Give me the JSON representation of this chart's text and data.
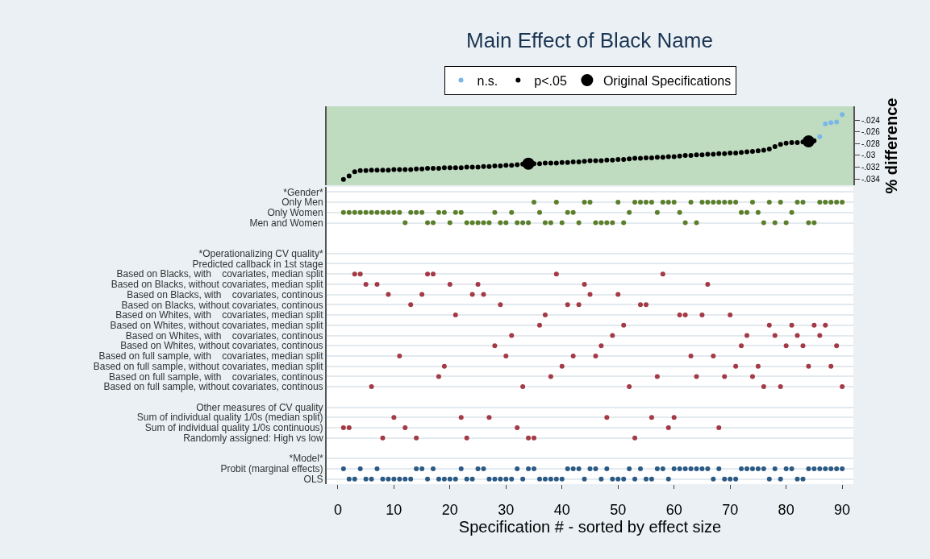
{
  "chart_data": [
    {
      "type": "scatter",
      "title": "Main Effect of Black Name",
      "ylabel": "% difference",
      "legend": "top",
      "marker": "circle",
      "tick_labels": "y",
      "xlim": [
        -2,
        92
      ],
      "xticks": [
        0,
        10,
        20,
        30,
        40,
        50,
        60,
        70,
        80,
        90
      ],
      "ylim": [
        -0.0351,
        -0.0216
      ],
      "yticks": [
        {
          "value": -0.024,
          "label": "-.024"
        },
        {
          "value": -0.026,
          "label": "-.026"
        },
        {
          "value": -0.028,
          "label": "-.028"
        },
        {
          "value": -0.03,
          "label": "-.03"
        },
        {
          "value": -0.032,
          "label": "-.032"
        },
        {
          "value": -0.034,
          "label": "-.034"
        }
      ],
      "series": [
        {
          "name": "n.s.",
          "color": "#7ab6e6",
          "x": [
            86,
            87,
            88,
            89,
            90
          ],
          "values": [
            -0.0268,
            -0.0246,
            -0.0244,
            -0.0243,
            -0.023
          ]
        },
        {
          "name": "p<.05",
          "color": "#000000",
          "x": [
            1,
            2,
            3,
            4,
            5,
            6,
            7,
            8,
            9,
            10,
            11,
            12,
            13,
            14,
            15,
            16,
            17,
            18,
            19,
            20,
            21,
            22,
            23,
            24,
            25,
            26,
            27,
            28,
            29,
            30,
            31,
            32,
            33,
            35,
            36,
            37,
            38,
            39,
            40,
            41,
            42,
            43,
            44,
            45,
            46,
            47,
            48,
            49,
            50,
            51,
            52,
            53,
            54,
            55,
            56,
            57,
            58,
            59,
            60,
            61,
            62,
            63,
            64,
            65,
            66,
            67,
            68,
            69,
            70,
            71,
            72,
            73,
            74,
            75,
            76,
            77,
            78,
            79,
            80,
            81,
            82,
            83,
            85
          ],
          "values": [
            -0.0341,
            -0.0335,
            -0.0328,
            -0.0326,
            -0.0326,
            -0.0325,
            -0.0325,
            -0.0325,
            -0.0325,
            -0.0324,
            -0.0324,
            -0.0324,
            -0.0324,
            -0.0323,
            -0.0323,
            -0.0322,
            -0.0322,
            -0.0322,
            -0.0321,
            -0.0321,
            -0.0321,
            -0.0321,
            -0.032,
            -0.032,
            -0.032,
            -0.0319,
            -0.0319,
            -0.0318,
            -0.0318,
            -0.0317,
            -0.0317,
            -0.0316,
            -0.0315,
            -0.0314,
            -0.0314,
            -0.0313,
            -0.0313,
            -0.0313,
            -0.0312,
            -0.0312,
            -0.0311,
            -0.0311,
            -0.031,
            -0.0309,
            -0.0309,
            -0.0309,
            -0.0308,
            -0.0308,
            -0.0307,
            -0.0307,
            -0.0306,
            -0.0305,
            -0.0305,
            -0.0304,
            -0.0304,
            -0.0303,
            -0.0303,
            -0.0302,
            -0.0302,
            -0.0301,
            -0.03,
            -0.03,
            -0.0299,
            -0.0299,
            -0.0298,
            -0.0298,
            -0.0297,
            -0.0297,
            -0.0296,
            -0.0296,
            -0.0295,
            -0.0294,
            -0.0293,
            -0.0292,
            -0.0291,
            -0.0289,
            -0.0285,
            -0.0281,
            -0.0279,
            -0.0278,
            -0.0278,
            -0.0277,
            -0.0275
          ]
        },
        {
          "name": "Original Specifications",
          "color": "#000000",
          "x": [
            34,
            84
          ],
          "values": [
            -0.0314,
            -0.0276
          ]
        }
      ]
    },
    {
      "type": "scatter",
      "orientation": "horizontal",
      "xlabel": "Specification # - sorted by effect size",
      "marker": "circle",
      "grid": "y",
      "xlim": [
        -2,
        92
      ],
      "xticks": [
        0,
        10,
        20,
        30,
        40,
        50,
        60,
        70,
        80,
        90
      ],
      "categories": [
        "*Gender*",
        "Only Men",
        "Only Women",
        "Men and Women",
        null,
        null,
        "*Operationalizing CV quality*",
        "Predicted callback in 1st stage",
        "Based on Blacks, with    covariates, median split",
        "Based on Blacks, without covariates, median split",
        "Based on Blacks, with    covariates, continous",
        "Based on Blacks, without covariates, continous",
        "Based on Whites, with    covariates, median split",
        "Based on Whites, without covariates, median split",
        "Based on Whites, with    covariates, continous",
        "Based on Whites, without covariates, continous",
        "Based on full sample, with    covariates, median split",
        "Based on full sample, without covariates, median split",
        "Based on full sample, with    covariates, continous",
        "Based on full sample, without covariates, continous",
        null,
        "Other measures of CV quality",
        "Sum of individual quality 1/0s (median split)",
        "Sum of individual quality 1/0s continuous)",
        "Randomly assigned: High vs low",
        null,
        "*Model*",
        "Probit (marginal effects)",
        "OLS"
      ],
      "series": [
        {
          "color": "#5b7f2b",
          "x": [
            "Only Men",
            "Only Men",
            "Only Men",
            "Only Men",
            "Only Men",
            "Only Men",
            "Only Men",
            "Only Men",
            "Only Men",
            "Only Men",
            "Only Men",
            "Only Men",
            "Only Men",
            "Only Men",
            "Only Men",
            "Only Men",
            "Only Men",
            "Only Men",
            "Only Men",
            "Only Men",
            "Only Men",
            "Only Men",
            "Only Men",
            "Only Men",
            "Only Men",
            "Only Men",
            "Only Men",
            "Only Men",
            "Only Men",
            "Only Men",
            "Only Women",
            "Only Women",
            "Only Women",
            "Only Women",
            "Only Women",
            "Only Women",
            "Only Women",
            "Only Women",
            "Only Women",
            "Only Women",
            "Only Women",
            "Only Women",
            "Only Women",
            "Only Women",
            "Only Women",
            "Only Women",
            "Only Women",
            "Only Women",
            "Only Women",
            "Only Women",
            "Only Women",
            "Only Women",
            "Only Women",
            "Only Women",
            "Only Women",
            "Only Women",
            "Only Women",
            "Only Women",
            "Only Women",
            "Only Women",
            "Men and Women",
            "Men and Women",
            "Men and Women",
            "Men and Women",
            "Men and Women",
            "Men and Women",
            "Men and Women",
            "Men and Women",
            "Men and Women",
            "Men and Women",
            "Men and Women",
            "Men and Women",
            "Men and Women",
            "Men and Women",
            "Men and Women",
            "Men and Women",
            "Men and Women",
            "Men and Women",
            "Men and Women",
            "Men and Women",
            "Men and Women",
            "Men and Women",
            "Men and Women",
            "Men and Women",
            "Men and Women",
            "Men and Women",
            "Men and Women",
            "Men and Women",
            "Men and Women",
            "Men and Women"
          ],
          "values": [
            35,
            39,
            44,
            45,
            50,
            53,
            54,
            55,
            56,
            58,
            59,
            60,
            63,
            65,
            66,
            67,
            68,
            69,
            70,
            71,
            74,
            77,
            79,
            82,
            83,
            86,
            87,
            88,
            89,
            90,
            1,
            2,
            3,
            4,
            5,
            6,
            7,
            8,
            9,
            10,
            11,
            13,
            14,
            15,
            18,
            19,
            21,
            22,
            28,
            31,
            36,
            41,
            42,
            52,
            57,
            61,
            72,
            73,
            75,
            81,
            12,
            16,
            17,
            20,
            23,
            24,
            25,
            26,
            27,
            29,
            30,
            32,
            33,
            34,
            37,
            38,
            40,
            43,
            46,
            47,
            48,
            49,
            51,
            62,
            64,
            76,
            78,
            80,
            84,
            85
          ]
        },
        {
          "color": "#a33a45",
          "x": [
            "Based on Blacks, with    covariates, median split",
            "Based on Blacks, with    covariates, median split",
            "Based on Blacks, with    covariates, median split",
            "Based on Blacks, with    covariates, median split",
            "Based on Blacks, with    covariates, median split",
            "Based on Blacks, with    covariates, median split",
            "Based on Blacks, without covariates, median split",
            "Based on Blacks, without covariates, median split",
            "Based on Blacks, without covariates, median split",
            "Based on Blacks, without covariates, median split",
            "Based on Blacks, without covariates, median split",
            "Based on Blacks, without covariates, median split",
            "Based on Blacks, with    covariates, continous",
            "Based on Blacks, with    covariates, continous",
            "Based on Blacks, with    covariates, continous",
            "Based on Blacks, with    covariates, continous",
            "Based on Blacks, with    covariates, continous",
            "Based on Blacks, with    covariates, continous",
            "Based on Blacks, without covariates, continous",
            "Based on Blacks, without covariates, continous",
            "Based on Blacks, without covariates, continous",
            "Based on Blacks, without covariates, continous",
            "Based on Blacks, without covariates, continous",
            "Based on Blacks, without covariates, continous",
            "Based on Whites, with    covariates, median split",
            "Based on Whites, with    covariates, median split",
            "Based on Whites, with    covariates, median split",
            "Based on Whites, with    covariates, median split",
            "Based on Whites, with    covariates, median split",
            "Based on Whites, with    covariates, median split",
            "Based on Whites, without covariates, median split",
            "Based on Whites, without covariates, median split",
            "Based on Whites, without covariates, median split",
            "Based on Whites, without covariates, median split",
            "Based on Whites, without covariates, median split",
            "Based on Whites, without covariates, median split",
            "Based on Whites, with    covariates, continous",
            "Based on Whites, with    covariates, continous",
            "Based on Whites, with    covariates, continous",
            "Based on Whites, with    covariates, continous",
            "Based on Whites, with    covariates, continous",
            "Based on Whites, with    covariates, continous",
            "Based on Whites, without covariates, continous",
            "Based on Whites, without covariates, continous",
            "Based on Whites, without covariates, continous",
            "Based on Whites, without covariates, continous",
            "Based on Whites, without covariates, continous",
            "Based on Whites, without covariates, continous",
            "Based on full sample, with    covariates, median split",
            "Based on full sample, with    covariates, median split",
            "Based on full sample, with    covariates, median split",
            "Based on full sample, with    covariates, median split",
            "Based on full sample, with    covariates, median split",
            "Based on full sample, with    covariates, median split",
            "Based on full sample, without covariates, median split",
            "Based on full sample, without covariates, median split",
            "Based on full sample, without covariates, median split",
            "Based on full sample, without covariates, median split",
            "Based on full sample, without covariates, median split",
            "Based on full sample, without covariates, median split",
            "Based on full sample, with    covariates, continous",
            "Based on full sample, with    covariates, continous",
            "Based on full sample, with    covariates, continous",
            "Based on full sample, with    covariates, continous",
            "Based on full sample, with    covariates, continous",
            "Based on full sample, with    covariates, continous",
            "Based on full sample, without covariates, continous",
            "Based on full sample, without covariates, continous",
            "Based on full sample, without covariates, continous",
            "Based on full sample, without covariates, continous",
            "Based on full sample, without covariates, continous",
            "Based on full sample, without covariates, continous",
            "Sum of individual quality 1/0s (median split)",
            "Sum of individual quality 1/0s (median split)",
            "Sum of individual quality 1/0s (median split)",
            "Sum of individual quality 1/0s (median split)",
            "Sum of individual quality 1/0s (median split)",
            "Sum of individual quality 1/0s (median split)",
            "Sum of individual quality 1/0s continuous)",
            "Sum of individual quality 1/0s continuous)",
            "Sum of individual quality 1/0s continuous)",
            "Sum of individual quality 1/0s continuous)",
            "Sum of individual quality 1/0s continuous)",
            "Sum of individual quality 1/0s continuous)",
            "Randomly assigned: High vs low",
            "Randomly assigned: High vs low",
            "Randomly assigned: High vs low",
            "Randomly assigned: High vs low",
            "Randomly assigned: High vs low",
            "Randomly assigned: High vs low"
          ],
          "values": [
            3,
            4,
            16,
            17,
            39,
            58,
            5,
            7,
            20,
            25,
            44,
            66,
            9,
            15,
            24,
            26,
            45,
            50,
            13,
            29,
            41,
            43,
            54,
            55,
            21,
            37,
            61,
            62,
            65,
            70,
            36,
            51,
            77,
            81,
            85,
            87,
            31,
            49,
            73,
            78,
            82,
            86,
            28,
            47,
            72,
            80,
            83,
            89,
            11,
            30,
            42,
            46,
            63,
            67,
            19,
            40,
            71,
            75,
            84,
            88,
            18,
            38,
            57,
            64,
            69,
            74,
            6,
            33,
            52,
            76,
            79,
            90,
            10,
            22,
            27,
            48,
            56,
            60,
            1,
            2,
            12,
            32,
            59,
            68,
            8,
            14,
            23,
            34,
            35,
            53
          ]
        },
        {
          "color": "#2b5a85",
          "x": [
            "Probit (marginal effects)",
            "Probit (marginal effects)",
            "Probit (marginal effects)",
            "Probit (marginal effects)",
            "Probit (marginal effects)",
            "Probit (marginal effects)",
            "Probit (marginal effects)",
            "Probit (marginal effects)",
            "Probit (marginal effects)",
            "Probit (marginal effects)",
            "Probit (marginal effects)",
            "Probit (marginal effects)",
            "Probit (marginal effects)",
            "Probit (marginal effects)",
            "Probit (marginal effects)",
            "Probit (marginal effects)",
            "Probit (marginal effects)",
            "Probit (marginal effects)",
            "Probit (marginal effects)",
            "Probit (marginal effects)",
            "Probit (marginal effects)",
            "Probit (marginal effects)",
            "Probit (marginal effects)",
            "Probit (marginal effects)",
            "Probit (marginal effects)",
            "Probit (marginal effects)",
            "Probit (marginal effects)",
            "Probit (marginal effects)",
            "Probit (marginal effects)",
            "Probit (marginal effects)",
            "Probit (marginal effects)",
            "Probit (marginal effects)",
            "Probit (marginal effects)",
            "Probit (marginal effects)",
            "Probit (marginal effects)",
            "Probit (marginal effects)",
            "Probit (marginal effects)",
            "Probit (marginal effects)",
            "Probit (marginal effects)",
            "Probit (marginal effects)",
            "Probit (marginal effects)",
            "Probit (marginal effects)",
            "Probit (marginal effects)",
            "Probit (marginal effects)",
            "Probit (marginal effects)",
            "OLS",
            "OLS",
            "OLS",
            "OLS",
            "OLS",
            "OLS",
            "OLS",
            "OLS",
            "OLS",
            "OLS",
            "OLS",
            "OLS",
            "OLS",
            "OLS",
            "OLS",
            "OLS",
            "OLS",
            "OLS",
            "OLS",
            "OLS",
            "OLS",
            "OLS",
            "OLS",
            "OLS",
            "OLS",
            "OLS",
            "OLS",
            "OLS",
            "OLS",
            "OLS",
            "OLS",
            "OLS",
            "OLS",
            "OLS",
            "OLS",
            "OLS",
            "OLS",
            "OLS",
            "OLS",
            "OLS",
            "OLS",
            "OLS",
            "OLS",
            "OLS",
            "OLS"
          ],
          "values": [
            1,
            4,
            7,
            14,
            15,
            17,
            22,
            25,
            26,
            32,
            34,
            35,
            41,
            42,
            43,
            45,
            46,
            48,
            52,
            54,
            57,
            58,
            60,
            61,
            62,
            63,
            64,
            65,
            66,
            68,
            72,
            73,
            74,
            75,
            76,
            78,
            80,
            81,
            84,
            85,
            86,
            87,
            88,
            89,
            90,
            2,
            3,
            5,
            6,
            8,
            9,
            10,
            11,
            12,
            13,
            16,
            18,
            19,
            20,
            21,
            23,
            24,
            27,
            28,
            29,
            30,
            31,
            33,
            36,
            37,
            38,
            39,
            40,
            44,
            47,
            49,
            50,
            51,
            53,
            55,
            56,
            59,
            67,
            69,
            70,
            71,
            77,
            79,
            82,
            83
          ]
        }
      ]
    }
  ]
}
